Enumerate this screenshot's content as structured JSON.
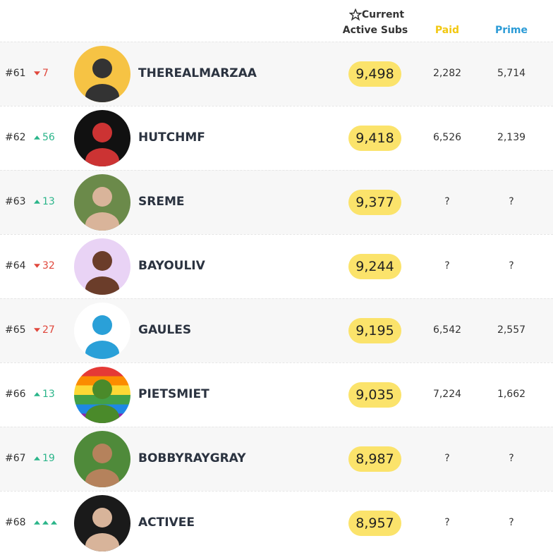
{
  "header": {
    "current": "Current",
    "active_subs": "Active Subs",
    "paid": "Paid",
    "prime": "Prime"
  },
  "rows": [
    {
      "rank": "#61",
      "trend": "down",
      "change": "7",
      "name": "THEREALMARZAA",
      "subs": "9,498",
      "paid": "2,282",
      "prime": "5,714"
    },
    {
      "rank": "#62",
      "trend": "up",
      "change": "56",
      "name": "HUTCHMF",
      "subs": "9,418",
      "paid": "6,526",
      "prime": "2,139"
    },
    {
      "rank": "#63",
      "trend": "up",
      "change": "13",
      "name": "SREME",
      "subs": "9,377",
      "paid": "?",
      "prime": "?"
    },
    {
      "rank": "#64",
      "trend": "down",
      "change": "32",
      "name": "BAYOULIV",
      "subs": "9,244",
      "paid": "?",
      "prime": "?"
    },
    {
      "rank": "#65",
      "trend": "down",
      "change": "27",
      "name": "GAULES",
      "subs": "9,195",
      "paid": "6,542",
      "prime": "2,557"
    },
    {
      "rank": "#66",
      "trend": "up",
      "change": "13",
      "name": "PIETSMIET",
      "subs": "9,035",
      "paid": "7,224",
      "prime": "1,662"
    },
    {
      "rank": "#67",
      "trend": "up",
      "change": "19",
      "name": "BOBBYRAYGRAY",
      "subs": "8,987",
      "paid": "?",
      "prime": "?"
    },
    {
      "rank": "#68",
      "trend": "new",
      "name": "ACTIVEE",
      "subs": "8,957",
      "paid": "?",
      "prime": "?"
    }
  ]
}
